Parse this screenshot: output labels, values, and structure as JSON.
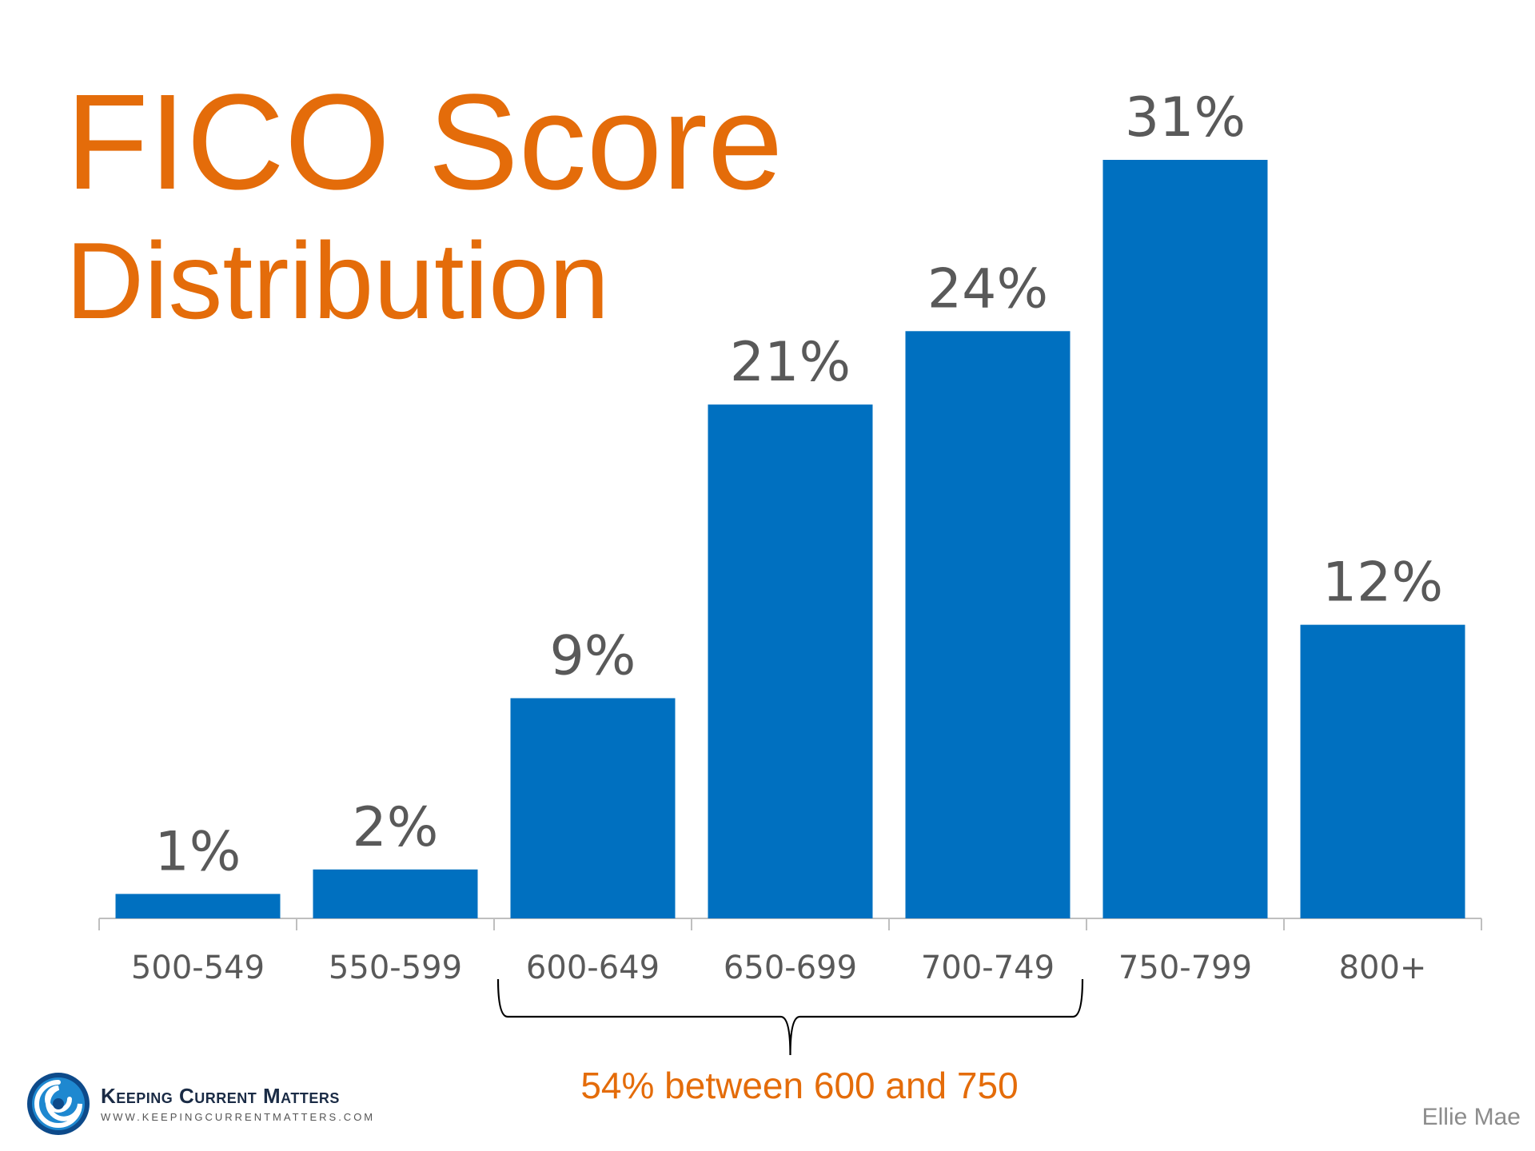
{
  "title_line1": "FICO Score",
  "title_line2": "Distribution",
  "chart_data": {
    "type": "bar",
    "categories": [
      "500-549",
      "550-599",
      "600-649",
      "650-699",
      "700-749",
      "750-799",
      "800+"
    ],
    "values": [
      1,
      2,
      9,
      21,
      24,
      31,
      12
    ],
    "value_labels": [
      "1%",
      "2%",
      "9%",
      "21%",
      "24%",
      "31%",
      "12%"
    ],
    "title": "FICO Score Distribution",
    "xlabel": "",
    "ylabel": "",
    "ylim": [
      0,
      31
    ],
    "grid": false,
    "bar_color": "#0070C0",
    "annotation": {
      "text": "54% between 600 and 750",
      "bracket_from": "600-649",
      "bracket_to": "700-749"
    }
  },
  "footer": {
    "source": "Ellie Mae",
    "logo_name": "Keeping Current Matters",
    "logo_url": "WWW.KEEPINGCURRENTMATTERS.COM"
  },
  "colors": {
    "accent": "#E46C0A",
    "bar": "#0070C0",
    "text_gray": "#595959"
  }
}
